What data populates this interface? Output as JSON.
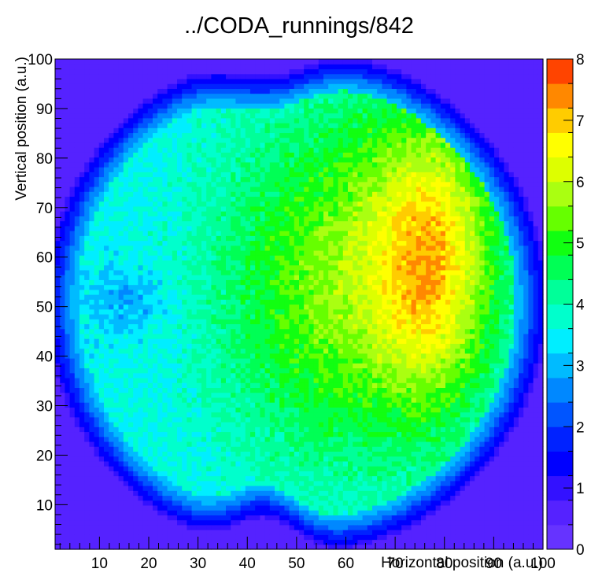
{
  "chart_data": {
    "type": "heatmap",
    "title": "../CODA_runnings/842",
    "xlabel": "Horizontal position (a.u.)",
    "ylabel": "Vertical position (a.u.)",
    "xlim": [
      1,
      100
    ],
    "ylim": [
      1,
      100
    ],
    "zlim": [
      0,
      8
    ],
    "x_tick_labels": [
      "10",
      "20",
      "30",
      "40",
      "50",
      "60",
      "70",
      "80",
      "90",
      "100"
    ],
    "y_tick_labels": [
      "10",
      "20",
      "30",
      "40",
      "50",
      "60",
      "70",
      "80",
      "90",
      "100"
    ],
    "z_tick_labels": [
      "0",
      "1",
      "2",
      "3",
      "4",
      "5",
      "6",
      "7",
      "8"
    ],
    "x_ticks": [
      10,
      20,
      30,
      40,
      50,
      60,
      70,
      80,
      90,
      100
    ],
    "y_ticks": [
      10,
      20,
      30,
      40,
      50,
      60,
      70,
      80,
      90,
      100
    ],
    "z_ticks": [
      0,
      1,
      2,
      3,
      4,
      5,
      6,
      7,
      8
    ],
    "bins": 100,
    "color_levels": 20,
    "palette": [
      "#6633ff",
      "#5522ff",
      "#3311ff",
      "#0000ff",
      "#0022ff",
      "#0055ff",
      "#0088ff",
      "#00bbff",
      "#00eeff",
      "#00ffcc",
      "#00ff99",
      "#00ff55",
      "#11ff11",
      "#66ff00",
      "#aaff11",
      "#ddff00",
      "#ffff00",
      "#ffcc00",
      "#ff8800",
      "#ff4400",
      "#ff0000"
    ],
    "background_level": 0.5,
    "shape": "disk with notch at bottom-center and top-center; hot region on right side (x 65-90, y 25-92)",
    "grid": false,
    "colorbar": "right"
  }
}
